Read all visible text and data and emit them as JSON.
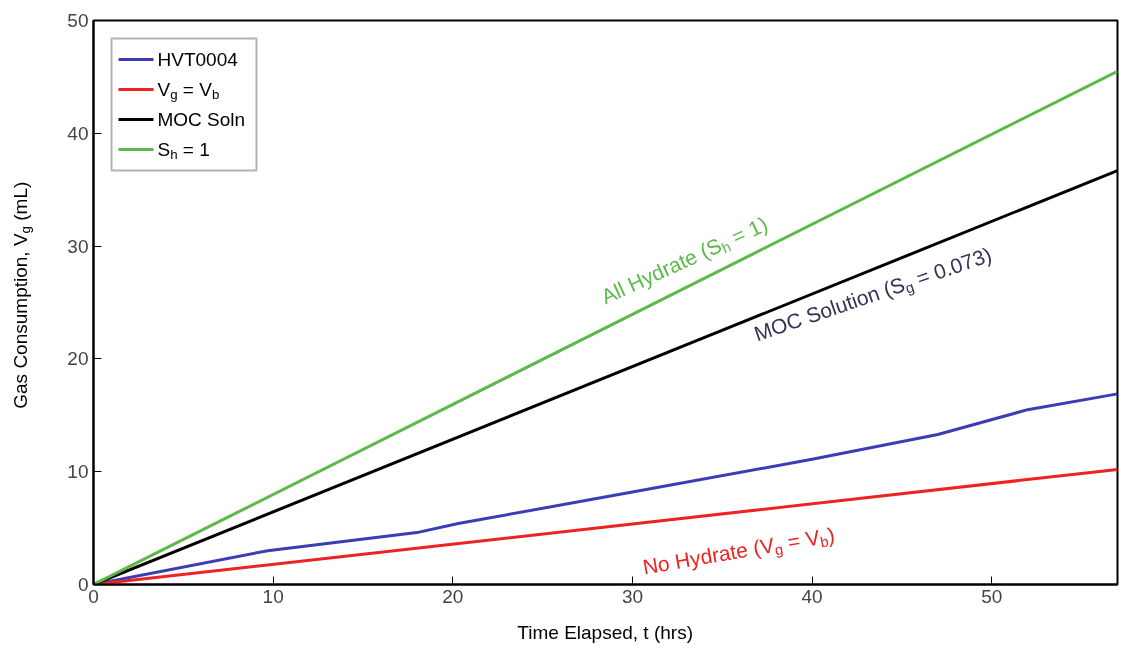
{
  "chart_data": {
    "type": "line",
    "xlabel": "Time Elapsed, t (hrs)",
    "ylabel": "Gas Consumption, V$_{g}$ (mL)",
    "xlim": [
      0,
      57
    ],
    "ylim": [
      0,
      50
    ],
    "xticks": [
      0,
      10,
      20,
      30,
      40,
      50
    ],
    "yticks": [
      0,
      10,
      20,
      30,
      40,
      50
    ],
    "grid": false,
    "legend": "top left",
    "line_style": "solid",
    "marker": "none",
    "series": [
      {
        "name": "HVT0004",
        "color": "#3c3cb4",
        "x": [
          0,
          9.7,
          18,
          20.3,
          30,
          40,
          47,
          52,
          57
        ],
        "values": [
          0,
          3.0,
          4.6,
          5.4,
          8.2,
          11.1,
          13.3,
          15.5,
          16.9
        ]
      },
      {
        "name": "V$_{g}$ = V$_{b}$",
        "color": "#ee2222",
        "x": [
          0,
          57
        ],
        "values": [
          0,
          10.2
        ]
      },
      {
        "name": "MOC Soln",
        "color": "#000000",
        "x": [
          0,
          57
        ],
        "values": [
          0,
          36.7
        ]
      },
      {
        "name": "S$_{h}$ = 1",
        "color": "#5cb84a",
        "x": [
          0,
          57
        ],
        "values": [
          0,
          45.5
        ]
      }
    ],
    "annotations": [
      "All Hydrate (S$_{h}$ = 1)",
      "MOC Solution (S$_{g}$ = 0.073)",
      "No Hydrate (V$_{g}$ = V$_{b}$)"
    ]
  }
}
